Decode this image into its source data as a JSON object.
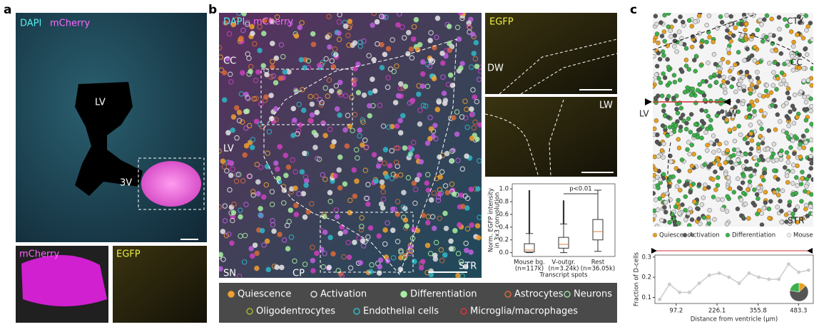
{
  "panels": {
    "a": {
      "letter": "a",
      "main_labels": [
        "DAPI",
        "mCherry"
      ],
      "regions": [
        "LV",
        "3V"
      ],
      "inset_labels": [
        "mCherry",
        "EGFP"
      ]
    },
    "b": {
      "letter": "b",
      "main_labels": [
        "DAPI",
        "mCherry"
      ],
      "regions": [
        "CC",
        "LV",
        "SN",
        "CP",
        "STR"
      ],
      "inset_top": [
        "EGFP",
        "DW"
      ],
      "inset_bottom": [
        "LW"
      ],
      "legend": [
        {
          "label": "Quiescence",
          "color": "#f0a030",
          "marker": "filled"
        },
        {
          "label": "Activation",
          "color": "#dddddd",
          "marker": "ring"
        },
        {
          "label": "Differentiation",
          "color": "#a8f0a0",
          "marker": "filled"
        },
        {
          "label": "Astrocytes",
          "color": "#d86a3a",
          "marker": "ring"
        },
        {
          "label": "Neurons",
          "color": "#9ad89a",
          "marker": "ring"
        },
        {
          "label": "Oligodentrocytes",
          "color": "#a8b030",
          "marker": "ring"
        },
        {
          "label": "Endothelial cells",
          "color": "#30b8c8",
          "marker": "ring"
        },
        {
          "label": "Microglia/macrophages",
          "color": "#e03040",
          "marker": "ring"
        }
      ]
    },
    "c": {
      "letter": "c",
      "regions": [
        "CTX",
        "CC",
        "LV",
        "LW",
        "STR"
      ],
      "legend": [
        {
          "label": "Quiescence",
          "color": "#e8a020"
        },
        {
          "label": "Activation",
          "color": "#555555"
        },
        {
          "label": "Differentiation",
          "color": "#3cb04a"
        },
        {
          "label": "Mouse",
          "color": "#eeeeee"
        }
      ]
    }
  },
  "chart_data": [
    {
      "type": "box",
      "y_label": [
        "Norm. EGFP intensity",
        "in 3x3 convolution"
      ],
      "x_label": "Transcript spots",
      "categories": [
        "Mouse bg.",
        "V-outgr.",
        "Rest"
      ],
      "sample_sizes": [
        "(n=117k)",
        "(n=3.24k)",
        "(n=36.05k)"
      ],
      "boxes": [
        {
          "low": 0,
          "q1": 0.01,
          "median": 0.04,
          "q3": 0.14,
          "high": 0.3,
          "outlier_max": 0.98
        },
        {
          "low": 0,
          "q1": 0.07,
          "median": 0.13,
          "q3": 0.24,
          "high": 0.45,
          "outlier_max": 0.82
        },
        {
          "low": 0.02,
          "q1": 0.2,
          "median": 0.33,
          "q3": 0.52,
          "high": 0.98
        }
      ],
      "annotation": "p<0.01",
      "ylim": [
        -0.06,
        1.08
      ],
      "yticks": [
        {
          "value": 0,
          "label": "0.0"
        },
        0.2,
        0.4,
        0.6,
        0.8,
        {
          "value": 1,
          "label": "1.0"
        }
      ]
    },
    {
      "type": "line",
      "y_label": "Fraction of D-cells",
      "x_label": "Distance from ventricle (µm)",
      "color": "#cccccc",
      "x": [
        45,
        76,
        108,
        139,
        170,
        202,
        233,
        264,
        296,
        327,
        358,
        390,
        421,
        452,
        484,
        515
      ],
      "values": [
        0.09,
        0.165,
        0.125,
        0.125,
        0.17,
        0.21,
        0.22,
        0.2,
        0.17,
        0.22,
        0.2,
        0.19,
        0.19,
        0.265,
        0.225,
        0.235
      ],
      "xlim": [
        30,
        530
      ],
      "xticks": [
        97.2,
        226.1,
        355.8,
        483.3
      ],
      "ylim": [
        0.07,
        0.31
      ],
      "yticks": [
        0.1,
        0.2,
        0.3
      ]
    },
    {
      "type": "pie",
      "values": [
        13,
        65,
        22
      ],
      "colors": [
        "#e8a020",
        "#555555",
        "#3cb04a"
      ]
    }
  ]
}
